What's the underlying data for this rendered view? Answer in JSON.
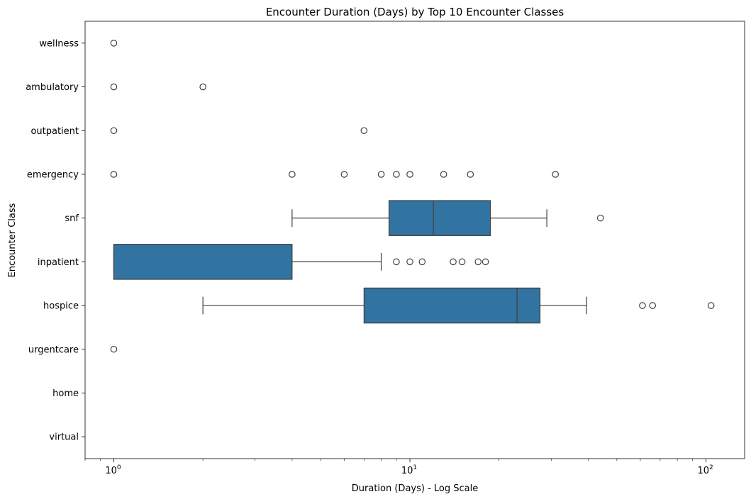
{
  "chart_data": {
    "type": "boxplot",
    "title": "Encounter Duration (Days) by Top 10 Encounter Classes",
    "xlabel": "Duration (Days) - Log Scale",
    "ylabel": "Encounter Class",
    "x_scale": "log",
    "xlim": [
      0.8,
      135
    ],
    "x_ticks": [
      {
        "value": 1,
        "base": "10",
        "exp": "0"
      },
      {
        "value": 10,
        "base": "10",
        "exp": "1"
      },
      {
        "value": 100,
        "base": "10",
        "exp": "2"
      }
    ],
    "grid": false,
    "box_color": "#3274a1",
    "categories": [
      "wellness",
      "ambulatory",
      "outpatient",
      "emergency",
      "snf",
      "inpatient",
      "hospice",
      "urgentcare",
      "home",
      "virtual"
    ],
    "boxes": [
      {
        "category": "wellness",
        "box": null,
        "outliers": [
          1
        ]
      },
      {
        "category": "ambulatory",
        "box": null,
        "outliers": [
          1,
          2
        ]
      },
      {
        "category": "outpatient",
        "box": null,
        "outliers": [
          1,
          7
        ]
      },
      {
        "category": "emergency",
        "box": null,
        "outliers": [
          1,
          4,
          6,
          8,
          9,
          10,
          13,
          16,
          31
        ]
      },
      {
        "category": "snf",
        "box": {
          "whislo": 4,
          "q1": 8.5,
          "med": 12,
          "q3": 18.7,
          "whishi": 29
        },
        "outliers": [
          44
        ]
      },
      {
        "category": "inpatient",
        "box": {
          "whislo": 1,
          "q1": 1,
          "med": 1,
          "q3": 4,
          "whishi": 8
        },
        "outliers": [
          9,
          10,
          11,
          14,
          15,
          17,
          18
        ]
      },
      {
        "category": "hospice",
        "box": {
          "whislo": 2,
          "q1": 7,
          "med": 23,
          "q3": 27.5,
          "whishi": 39.5
        },
        "outliers": [
          61,
          66,
          104
        ]
      },
      {
        "category": "urgentcare",
        "box": null,
        "outliers": [
          1
        ]
      },
      {
        "category": "home",
        "box": null,
        "outliers": []
      },
      {
        "category": "virtual",
        "box": null,
        "outliers": []
      }
    ]
  }
}
